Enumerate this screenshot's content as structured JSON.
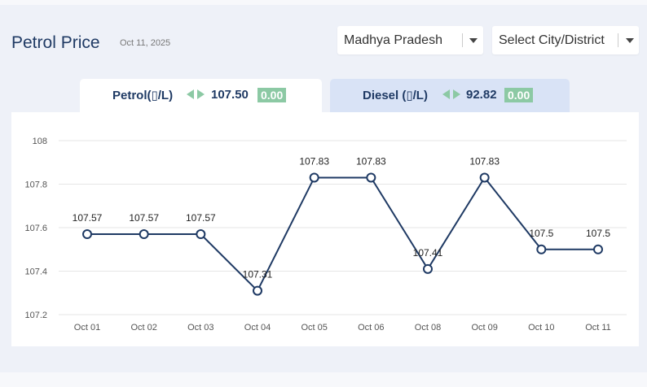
{
  "header": {
    "title": "Petrol Price",
    "date": "Oct 11, 2025"
  },
  "filters": {
    "state": "Madhya Pradesh",
    "city": "Select City/District"
  },
  "tabs": [
    {
      "name": "Petrol(▯/L)",
      "price": "107.50",
      "change": "0.00",
      "active": true
    },
    {
      "name": "Diesel (▯/L)",
      "price": "92.82",
      "change": "0.00",
      "active": false
    }
  ],
  "colors": {
    "title": "#1f3a64",
    "line": "#1f3a64",
    "change_badge": "#8cc9a4",
    "arrow_icon": "#8cc9a4",
    "active_tab": "#ffffff",
    "inactive_tab": "#d9e3f6"
  },
  "icons": {
    "tab_arrows": "left-right-arrows-icon",
    "dropdown": "caret-down-icon"
  },
  "chart_data": {
    "type": "line",
    "categories": [
      "Oct 01",
      "Oct 02",
      "Oct 03",
      "Oct 04",
      "Oct 05",
      "Oct 06",
      "Oct 08",
      "Oct 09",
      "Oct 10",
      "Oct 11"
    ],
    "values": [
      107.57,
      107.57,
      107.57,
      107.31,
      107.83,
      107.83,
      107.41,
      107.83,
      107.5,
      107.5
    ],
    "data_labels": [
      "107.57",
      "107.57",
      "107.57",
      "107.31",
      "107.83",
      "107.83",
      "107.41",
      "107.83",
      "107.5",
      "107.5"
    ],
    "y_ticks": [
      "108",
      "107.8",
      "107.6",
      "107.4",
      "107.2"
    ],
    "ylim": [
      107.2,
      108
    ],
    "grid": true,
    "title": "",
    "xlabel": "",
    "ylabel": ""
  }
}
